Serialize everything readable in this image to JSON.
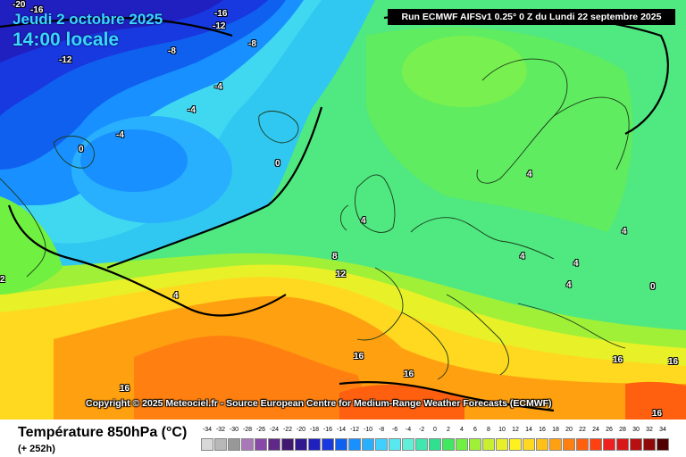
{
  "header": {
    "date": "Jeudi 2 octobre 2025",
    "time": "14:00 locale",
    "run": "Run ECMWF AIFSv1 0.25° 0 Z du Lundi 22 septembre 2025"
  },
  "copyright": "Copyright © 2025 Meteociel.fr - Source European Centre for Medium-Range Weather Forecasts (ECMWF)",
  "footer": {
    "parameter": "Température 850hPa (°C)",
    "lead": "(+ 252h)"
  },
  "legend": {
    "labels": [
      "-34",
      "-32",
      "-30",
      "-28",
      "-26",
      "-24",
      "-22",
      "-20",
      "-18",
      "-16",
      "-14",
      "-12",
      "-10",
      "-8",
      "-6",
      "-4",
      "-2",
      "0",
      "2",
      "4",
      "6",
      "8",
      "10",
      "12",
      "14",
      "16",
      "18",
      "20",
      "22",
      "24",
      "26",
      "28",
      "30",
      "32",
      "34"
    ],
    "colors": [
      "#d8d8d8",
      "#b8b8b8",
      "#989898",
      "#a878b8",
      "#8848a8",
      "#602888",
      "#401870",
      "#301890",
      "#2020c0",
      "#1838e0",
      "#1060f0",
      "#1890ff",
      "#28b0ff",
      "#40d0ff",
      "#58e8f0",
      "#60f0d8",
      "#40e8b0",
      "#30e090",
      "#40e860",
      "#70f040",
      "#a0f038",
      "#c8f030",
      "#e8f028",
      "#fff020",
      "#ffd820",
      "#ffc018",
      "#ffa010",
      "#ff8010",
      "#ff6010",
      "#ff4010",
      "#f02020",
      "#d81818",
      "#b81010",
      "#900808",
      "#500000"
    ]
  },
  "isotherm_labels": [
    {
      "text": "-20"
    },
    {
      "text": "-16"
    },
    {
      "text": "-16"
    },
    {
      "text": "-12"
    },
    {
      "text": "-8"
    },
    {
      "text": "-12"
    },
    {
      "text": "-8"
    },
    {
      "text": "-4"
    },
    {
      "text": "-4"
    },
    {
      "text": "-4"
    },
    {
      "text": "0"
    },
    {
      "text": "0"
    },
    {
      "text": "4"
    },
    {
      "text": "8"
    },
    {
      "text": "12"
    },
    {
      "text": "4"
    },
    {
      "text": "4"
    },
    {
      "text": "4"
    },
    {
      "text": "4"
    },
    {
      "text": "4"
    },
    {
      "text": "0"
    },
    {
      "text": "4"
    },
    {
      "text": "2"
    },
    {
      "text": "16"
    },
    {
      "text": "16"
    },
    {
      "text": "16"
    },
    {
      "text": "16"
    },
    {
      "text": "16"
    },
    {
      "text": "16"
    }
  ]
}
